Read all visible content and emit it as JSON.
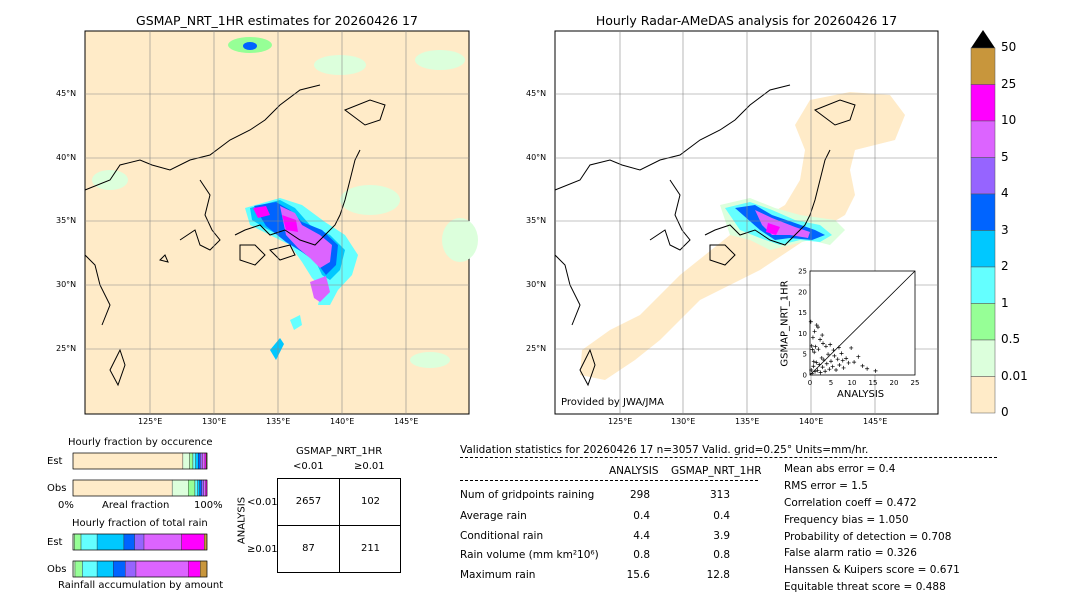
{
  "left_map": {
    "title": "GSMAP_NRT_1HR estimates for 20260426 17",
    "lat_ticks": [
      "45°N",
      "40°N",
      "35°N",
      "30°N",
      "25°N"
    ],
    "lon_ticks": [
      "125°E",
      "130°E",
      "135°E",
      "140°E",
      "145°E"
    ]
  },
  "right_map": {
    "title": "Hourly Radar-AMeDAS analysis for 20260426 17",
    "lat_ticks": [
      "45°N",
      "40°N",
      "35°N",
      "30°N",
      "25°N"
    ],
    "lon_ticks": [
      "125°E",
      "130°E",
      "135°E",
      "140°E",
      "145°E"
    ],
    "credit": "Provided by JWA/JMA",
    "inset": {
      "ylabel": "GSMAP_NRT_1HR",
      "xlabel": "ANALYSIS",
      "ticks": [
        "0",
        "5",
        "10",
        "15",
        "20",
        "25"
      ]
    }
  },
  "colorbar": {
    "labels": [
      "50",
      "25",
      "10",
      "5",
      "4",
      "3",
      "2",
      "1",
      "0.5",
      "0.01",
      "0"
    ],
    "colors": [
      "#c8963c",
      "#ff00ff",
      "#dc64ff",
      "#9664ff",
      "#0064ff",
      "#00c8ff",
      "#64ffff",
      "#96ff96",
      "#dcffdc",
      "#ffebc8"
    ]
  },
  "hist_occurrence": {
    "title": "Hourly fraction by occurence",
    "row1": "Est",
    "row2": "Obs",
    "axis_left": "0%",
    "axis_mid": "Areal fraction",
    "axis_right": "100%"
  },
  "hist_amount": {
    "title": "Hourly fraction of total rain",
    "row1": "Est",
    "row2": "Obs",
    "footer": "Rainfall accumulation by amount"
  },
  "contingency": {
    "title": "GSMAP_NRT_1HR",
    "col1": "<0.01",
    "col2": "≥0.01",
    "row_axis": "ANALYSIS",
    "row1": "<0.01",
    "row2": "≥0.01",
    "cells": [
      "2657",
      "102",
      "87",
      "211"
    ]
  },
  "validation": {
    "header": "Validation statistics for 20260426 17  n=3057 Valid. grid=0.25° Units=mm/hr.",
    "col_analysis": "ANALYSIS",
    "col_gsmap": "GSMAP_NRT_1HR",
    "rows": [
      {
        "label": "Num of gridpoints raining",
        "a": "298",
        "g": "313"
      },
      {
        "label": "Average rain",
        "a": "0.4",
        "g": "0.4"
      },
      {
        "label": "Conditional rain",
        "a": "4.4",
        "g": "3.9"
      },
      {
        "label": "Rain volume (mm km²10⁶)",
        "a": "0.8",
        "g": "0.8"
      },
      {
        "label": "Maximum rain",
        "a": "15.6",
        "g": "12.8"
      }
    ],
    "scores": [
      "Mean abs error =    0.4",
      "RMS error =    1.5",
      "Correlation coeff =  0.472",
      "Frequency bias =  1.050",
      "Probability of detection =  0.708",
      "False alarm ratio =  0.326",
      "Hanssen & Kuipers score =  0.671",
      "Equitable threat score =  0.488"
    ]
  },
  "chart_data": [
    {
      "type": "table",
      "title": "GSMAP_NRT_1HR",
      "columns": [
        "<0.01",
        "≥0.01"
      ],
      "rows": [
        {
          "name": "<0.01",
          "values": [
            2657,
            102
          ]
        },
        {
          "name": "≥0.01",
          "values": [
            87,
            211
          ]
        }
      ]
    },
    {
      "type": "scatter",
      "xlabel": "ANALYSIS",
      "ylabel": "GSMAP_NRT_1HR",
      "xlim": [
        0,
        25
      ],
      "ylim": [
        0,
        25
      ],
      "points": [
        [
          0.3,
          1.2
        ],
        [
          0.5,
          0.4
        ],
        [
          0.8,
          2.1
        ],
        [
          1.0,
          5.5
        ],
        [
          1.2,
          0.8
        ],
        [
          1.5,
          3.0
        ],
        [
          1.8,
          1.1
        ],
        [
          2.0,
          6.2
        ],
        [
          2.2,
          2.5
        ],
        [
          2.5,
          0.6
        ],
        [
          2.8,
          4.1
        ],
        [
          3.0,
          1.9
        ],
        [
          3.3,
          3.6
        ],
        [
          3.6,
          0.9
        ],
        [
          4.0,
          2.7
        ],
        [
          4.3,
          5.0
        ],
        [
          4.6,
          1.4
        ],
        [
          5.0,
          3.3
        ],
        [
          5.4,
          2.0
        ],
        [
          5.8,
          4.6
        ],
        [
          6.2,
          1.2
        ],
        [
          6.6,
          3.8
        ],
        [
          7.0,
          2.4
        ],
        [
          7.5,
          5.2
        ],
        [
          8.0,
          1.7
        ],
        [
          8.6,
          4.0
        ],
        [
          9.2,
          2.9
        ],
        [
          9.8,
          6.5
        ],
        [
          10.5,
          3.1
        ],
        [
          11.5,
          4.4
        ],
        [
          1.1,
          10.5
        ],
        [
          0.7,
          9.0
        ],
        [
          1.9,
          11.5
        ],
        [
          2.4,
          8.5
        ],
        [
          0.2,
          12.8
        ],
        [
          3.1,
          7.6
        ],
        [
          0.4,
          7.0
        ],
        [
          1.6,
          12.0
        ],
        [
          2.9,
          9.6
        ],
        [
          0.9,
          3.2
        ],
        [
          0.6,
          6.1
        ],
        [
          1.3,
          6.8
        ],
        [
          3.8,
          6.9
        ],
        [
          4.8,
          7.3
        ],
        [
          5.6,
          6.0
        ],
        [
          6.9,
          6.6
        ],
        [
          7.8,
          3.5
        ],
        [
          12.5,
          2.2
        ],
        [
          13.6,
          1.5
        ],
        [
          15.6,
          1.0
        ]
      ]
    },
    {
      "type": "bar",
      "title": "Hourly fraction by occurence",
      "categories": [
        "Est",
        "Obs"
      ],
      "series_colors": [
        "#ffebc8",
        "#dcffdc",
        "#96ff96",
        "#64ffff",
        "#00c8ff",
        "#0064ff",
        "#9664ff",
        "#dc64ff",
        "#ff00ff",
        "#c8963c"
      ],
      "values": [
        [
          0.82,
          0.05,
          0.025,
          0.02,
          0.02,
          0.015,
          0.015,
          0.02,
          0.01,
          0.005
        ],
        [
          0.74,
          0.12,
          0.05,
          0.02,
          0.015,
          0.015,
          0.015,
          0.015,
          0.01,
          0.0
        ]
      ]
    },
    {
      "type": "bar",
      "title": "Hourly fraction of total rain",
      "categories": [
        "Est",
        "Obs"
      ],
      "series_colors": [
        "#ffebc8",
        "#dcffdc",
        "#96ff96",
        "#64ffff",
        "#00c8ff",
        "#0064ff",
        "#9664ff",
        "#dc64ff",
        "#ff00ff",
        "#c8963c"
      ],
      "values": [
        [
          0.0,
          0.01,
          0.05,
          0.12,
          0.2,
          0.08,
          0.07,
          0.28,
          0.17,
          0.02
        ],
        [
          0.0,
          0.015,
          0.055,
          0.11,
          0.12,
          0.09,
          0.08,
          0.39,
          0.09,
          0.05
        ]
      ]
    }
  ]
}
